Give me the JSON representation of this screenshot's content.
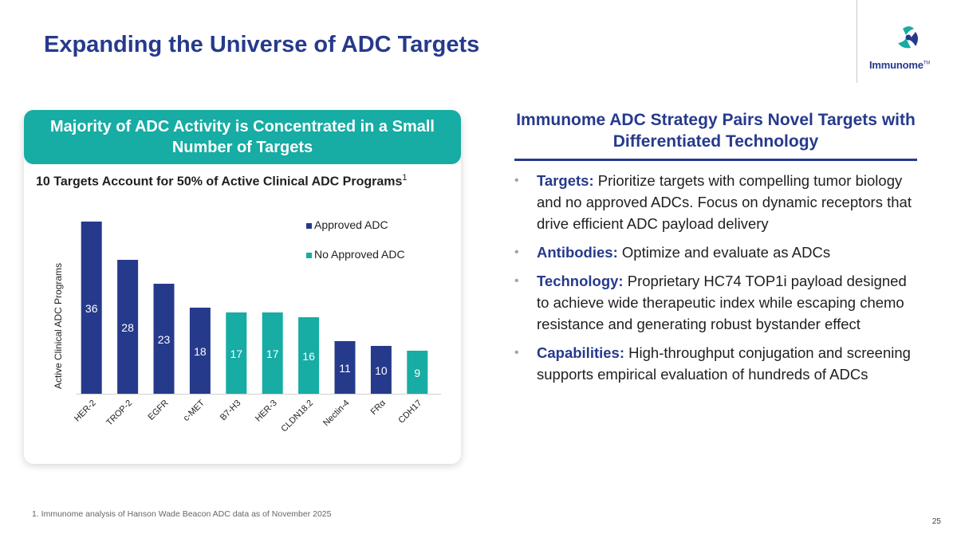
{
  "title": "Expanding the Universe of ADC Targets",
  "logo": {
    "name": "Immunome",
    "tm": "TM"
  },
  "left_panel": {
    "header": "Majority of ADC Activity is Concentrated in a Small Number of Targets"
  },
  "chart_data": {
    "type": "bar",
    "title": "10 Targets Account for 50% of Active Clinical ADC Programs",
    "title_superscript": "1",
    "ylabel": "Active Clinical ADC Programs",
    "xlabel": "",
    "categories": [
      "HER-2",
      "TROP-2",
      "EGFR",
      "c-MET",
      "B7-H3",
      "HER-3",
      "CLDN18.2",
      "Nectin-4",
      "FRα",
      "CDH17"
    ],
    "values": [
      36,
      28,
      23,
      18,
      17,
      17,
      16,
      11,
      10,
      9
    ],
    "groups": [
      "Approved ADC",
      "Approved ADC",
      "Approved ADC",
      "Approved ADC",
      "No Approved ADC",
      "No Approved ADC",
      "No Approved ADC",
      "Approved ADC",
      "Approved ADC",
      "No Approved ADC"
    ],
    "legend": [
      {
        "name": "Approved ADC",
        "color": "#263a8c"
      },
      {
        "name": "No Approved ADC",
        "color": "#17aca4"
      }
    ],
    "legend_position": "top-right",
    "ylim": [
      0,
      36
    ],
    "grid": false
  },
  "right_panel": {
    "heading": "Immunome ADC Strategy Pairs Novel Targets with Differentiated Technology",
    "bullets": [
      {
        "label": "Targets:",
        "text": "Prioritize targets with compelling tumor biology and no approved ADCs. Focus on dynamic receptors that drive efficient ADC payload delivery"
      },
      {
        "label": "Antibodies:",
        "text": "Optimize and evaluate as ADCs"
      },
      {
        "label": "Technology:",
        "text": "Proprietary HC74 TOP1i payload designed to achieve wide therapeutic index while escaping chemo resistance and generating robust bystander effect"
      },
      {
        "label": "Capabilities:",
        "text": "High-throughput conjugation and screening supports empirical evaluation of hundreds of ADCs"
      }
    ],
    "bullet_glyph": "•"
  },
  "footnote": "1. Immunome analysis of Hanson Wade Beacon ADC data as of November 2025",
  "page_number": "25"
}
